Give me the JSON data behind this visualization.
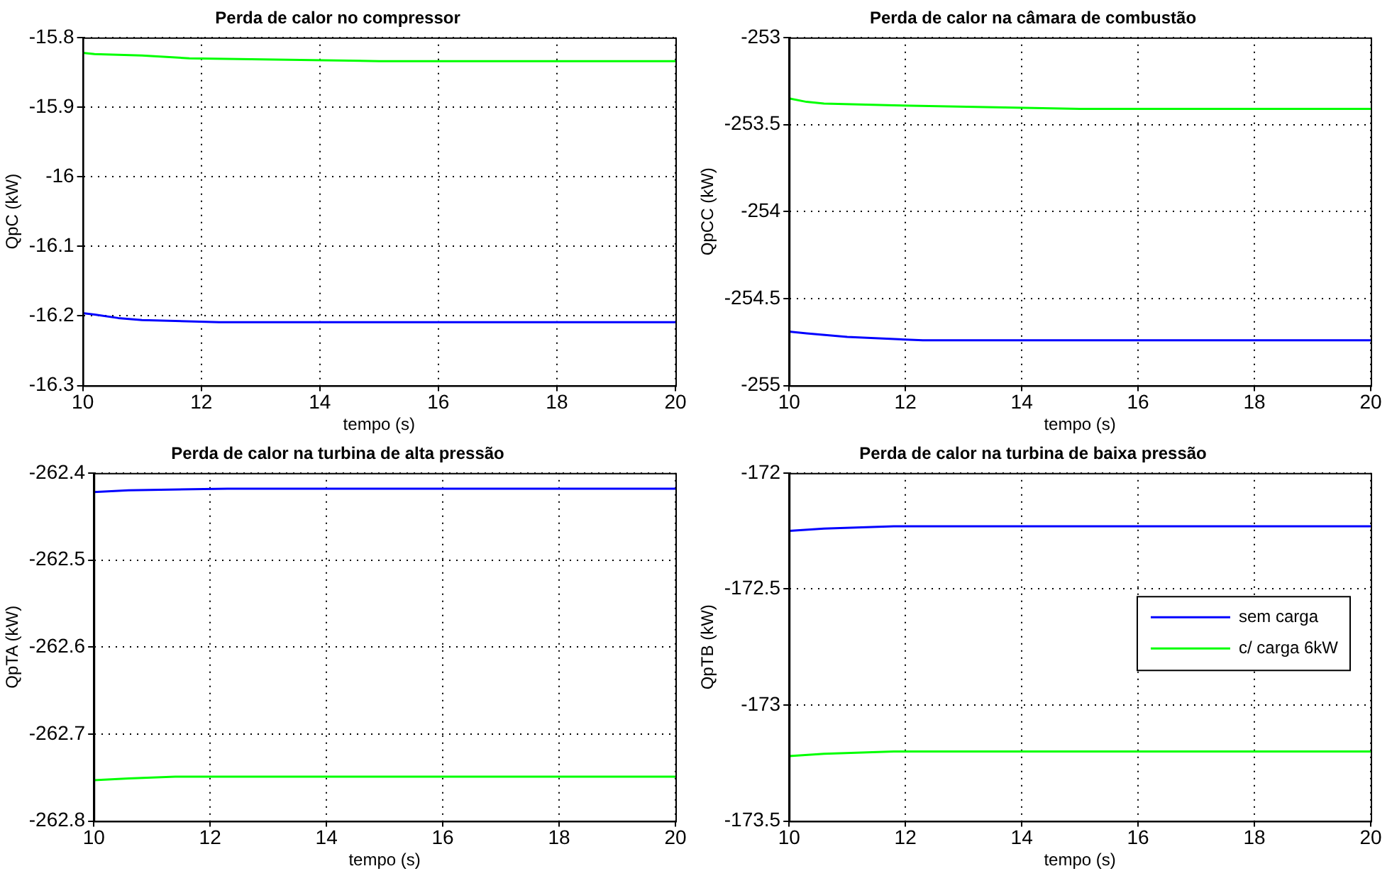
{
  "chart_data": [
    {
      "type": "line",
      "title": "Perda de calor no compressor",
      "xlabel": "tempo (s)",
      "ylabel": "QpC (kW)",
      "xlim": [
        10,
        20
      ],
      "xticks": [
        10,
        12,
        14,
        16,
        18,
        20
      ],
      "ylim": [
        -16.3,
        -15.8
      ],
      "yticks": [
        -16.3,
        -16.2,
        -16.1,
        -16,
        -15.9,
        -15.8
      ],
      "grid": true,
      "legend": false,
      "marker": "none",
      "line_style": "solid",
      "series": [
        {
          "color": "#0000ff",
          "x": [
            10,
            10.2,
            10.6,
            11,
            12.3,
            20
          ],
          "values": [
            -16.196,
            -16.198,
            -16.203,
            -16.206,
            -16.209,
            -16.209
          ]
        },
        {
          "color": "#00ff00",
          "x": [
            10,
            10.2,
            11,
            11.8,
            15,
            20
          ],
          "values": [
            -15.822,
            -15.824,
            -15.826,
            -15.83,
            -15.834,
            -15.834
          ]
        }
      ]
    },
    {
      "type": "line",
      "title": "Perda de calor na câmara de combustão",
      "xlabel": "tempo (s)",
      "ylabel": "QpCC (kW)",
      "xlim": [
        10,
        20
      ],
      "xticks": [
        10,
        12,
        14,
        16,
        18,
        20
      ],
      "ylim": [
        -255,
        -253
      ],
      "yticks": [
        -255,
        -254.5,
        -254,
        -253.5,
        -253
      ],
      "grid": true,
      "legend": false,
      "marker": "none",
      "line_style": "solid",
      "series": [
        {
          "color": "#0000ff",
          "x": [
            10,
            10.3,
            11,
            12.3,
            20
          ],
          "values": [
            -254.69,
            -254.7,
            -254.72,
            -254.74,
            -254.74
          ]
        },
        {
          "color": "#00ff00",
          "x": [
            10,
            10.3,
            10.6,
            11.8,
            15,
            20
          ],
          "values": [
            -253.35,
            -253.37,
            -253.38,
            -253.39,
            -253.41,
            -253.41
          ]
        }
      ]
    },
    {
      "type": "line",
      "title": "Perda de calor na turbina de alta pressão",
      "xlabel": "tempo (s)",
      "ylabel": "QpTA (kW)",
      "xlim": [
        10,
        20
      ],
      "xticks": [
        10,
        12,
        14,
        16,
        18,
        20
      ],
      "ylim": [
        -262.8,
        -262.4
      ],
      "yticks": [
        -262.8,
        -262.7,
        -262.6,
        -262.5,
        -262.4
      ],
      "grid": true,
      "legend": false,
      "marker": "none",
      "line_style": "solid",
      "series": [
        {
          "color": "#0000ff",
          "x": [
            10,
            10.6,
            12.3,
            20
          ],
          "values": [
            -262.422,
            -262.42,
            -262.418,
            -262.418
          ]
        },
        {
          "color": "#00ff00",
          "x": [
            10,
            10.6,
            11.4,
            20
          ],
          "values": [
            -262.753,
            -262.751,
            -262.749,
            -262.749
          ]
        }
      ]
    },
    {
      "type": "line",
      "title": "Perda de calor na turbina de baixa pressão",
      "xlabel": "tempo (s)",
      "ylabel": "QpTB (kW)",
      "xlim": [
        10,
        20
      ],
      "xticks": [
        10,
        12,
        14,
        16,
        18,
        20
      ],
      "ylim": [
        -173.5,
        -172
      ],
      "yticks": [
        -173.5,
        -173,
        -172.5,
        -172
      ],
      "grid": true,
      "legend": "right",
      "marker": "none",
      "line_style": "solid",
      "series": [
        {
          "name": "sem carga",
          "color": "#0000ff",
          "x": [
            10,
            10.6,
            11.8,
            20
          ],
          "values": [
            -172.25,
            -172.24,
            -172.23,
            -172.23
          ]
        },
        {
          "name": "c/ carga 6kW",
          "color": "#00ff00",
          "x": [
            10,
            10.6,
            11.8,
            20
          ],
          "values": [
            -173.22,
            -173.21,
            -173.2,
            -173.2
          ]
        }
      ]
    }
  ]
}
